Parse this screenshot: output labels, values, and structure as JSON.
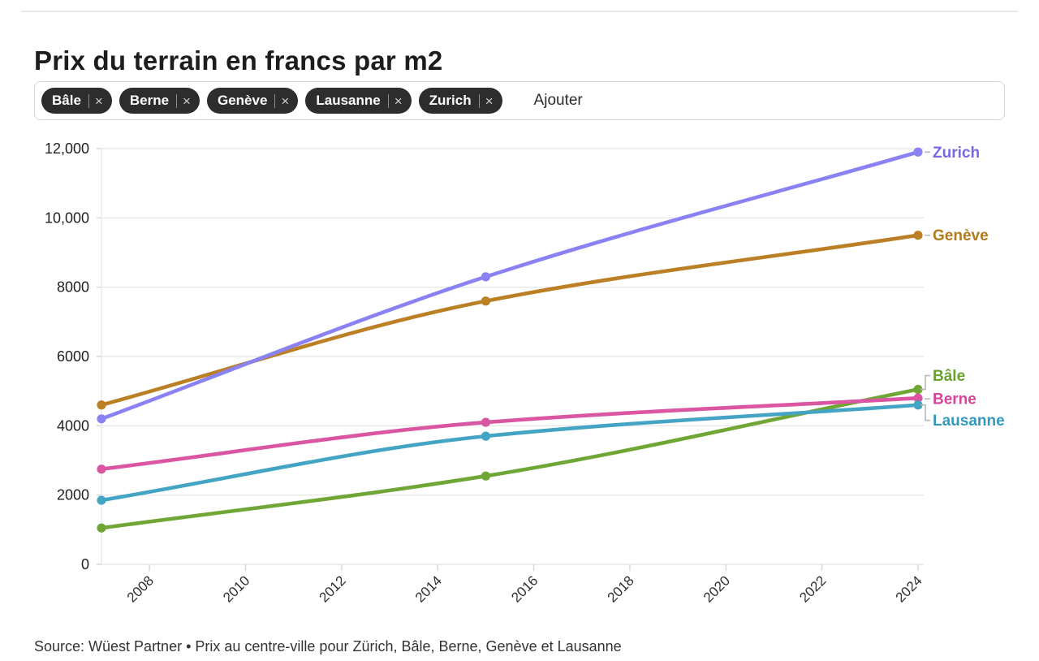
{
  "header": {
    "title": "Prix du terrain en francs par m2"
  },
  "filters": {
    "chips": [
      {
        "label": "Bâle"
      },
      {
        "label": "Berne"
      },
      {
        "label": "Genève"
      },
      {
        "label": "Lausanne"
      },
      {
        "label": "Zurich"
      }
    ],
    "remove_glyph": "×",
    "add_label": "Ajouter"
  },
  "footer": {
    "source": "Source: Wüest Partner • Prix au centre-ville pour Zürich, Bâle, Berne, Genève et Lausanne"
  },
  "colors": {
    "grid": "#e8e8e8",
    "axis_tick": "#d6d6d6",
    "connector": "#b8b8b8",
    "chip_bg": "#2d2d2d"
  },
  "chart_data": {
    "type": "line",
    "title": "Prix du terrain en francs par m2",
    "x": [
      2007,
      2015,
      2024
    ],
    "x_range": [
      2007,
      2024
    ],
    "x_ticks": [
      2008,
      2010,
      2012,
      2014,
      2016,
      2018,
      2020,
      2022,
      2024
    ],
    "ylim": [
      0,
      12000
    ],
    "y_ticks": [
      {
        "value": 0,
        "label": "0"
      },
      {
        "value": 2000,
        "label": "2000"
      },
      {
        "value": 4000,
        "label": "4000"
      },
      {
        "value": 6000,
        "label": "6000"
      },
      {
        "value": 8000,
        "label": "8000"
      },
      {
        "value": 10000,
        "label": "10,000"
      },
      {
        "value": 12000,
        "label": "12,000"
      }
    ],
    "grid": "horizontal",
    "legend": "end-labels",
    "series": [
      {
        "name": "Bâle",
        "slug": "bale",
        "values": [
          1050,
          2550,
          5050
        ],
        "color": "#70a636",
        "label_color": "#68a12c",
        "label_offset": -17
      },
      {
        "name": "Berne",
        "slug": "berne",
        "values": [
          2750,
          4100,
          4800
        ],
        "color": "#da55a2",
        "label_color": "#d6449c",
        "label_offset": 1
      },
      {
        "name": "Genève",
        "slug": "geneve",
        "values": [
          4600,
          7600,
          9500
        ],
        "color": "#bb8026",
        "label_color": "#b07a1d",
        "label_offset": 0
      },
      {
        "name": "Lausanne",
        "slug": "lausanne",
        "values": [
          1850,
          3700,
          4600
        ],
        "color": "#44a4c4",
        "label_color": "#3399bd",
        "label_offset": 19
      },
      {
        "name": "Zurich",
        "slug": "zurich",
        "values": [
          4200,
          8300,
          11900
        ],
        "color": "#8a82f2",
        "label_color": "#7668ea",
        "label_offset": 0
      }
    ]
  }
}
